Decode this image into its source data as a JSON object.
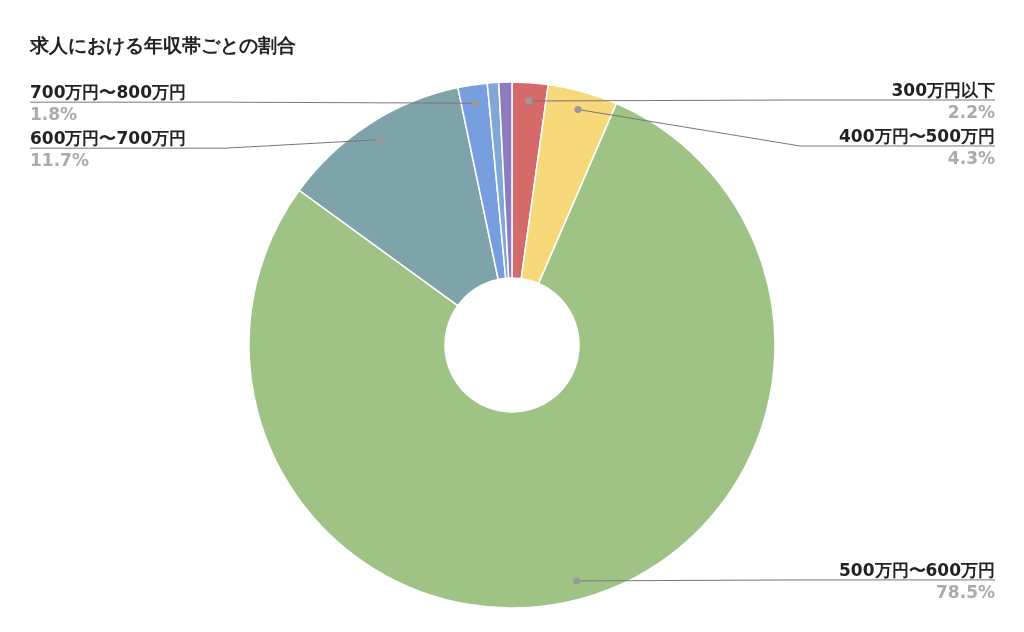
{
  "chart_data": {
    "type": "donut",
    "title": "求人における年収帯ごとの割合",
    "categories": [
      "300万円以下",
      "400万円〜500万円",
      "500万円〜600万円",
      "600万円〜700万円",
      "700万円〜800万円",
      null,
      null
    ],
    "values": [
      2.2,
      4.3,
      78.5,
      11.7,
      1.8,
      0.7,
      0.8
    ],
    "value_labels": [
      "2.2%",
      "4.3%",
      "78.5%",
      "11.7%",
      "1.8%",
      null,
      null
    ],
    "colors": [
      "#d46a6a",
      "#f7d87a",
      "#9ec384",
      "#7fa3ab",
      "#779fe0",
      "#7fa8d8",
      "#8c7cbf"
    ]
  }
}
